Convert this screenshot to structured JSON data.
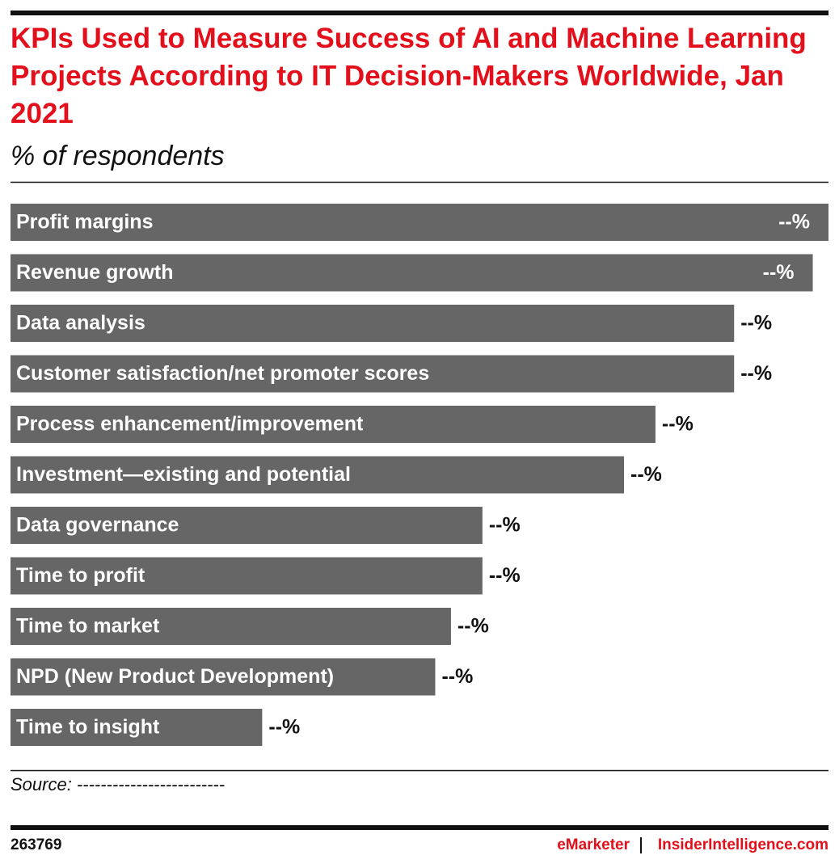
{
  "chart_data": {
    "type": "bar",
    "orientation": "horizontal",
    "title": "KPIs Used to Measure Success of AI and Machine Learning Projects According to IT Decision-Makers Worldwide, Jan 2021",
    "subtitle": "% of respondents",
    "categories": [
      "Profit margins",
      "Revenue growth",
      "Data analysis",
      "Customer satisfaction/net promoter scores",
      "Process enhancement/improvement",
      "Investment—existing and potential",
      "Data governance",
      "Time to profit",
      "Time to market",
      "NPD (New Product Development)",
      "Time to insight"
    ],
    "values": [
      52,
      51,
      46,
      46,
      41,
      39,
      30,
      30,
      28,
      27,
      16
    ],
    "value_labels": [
      "--%",
      "--%",
      "--%",
      "--%",
      "--%",
      "--%",
      "--%",
      "--%",
      "--%",
      "--%",
      "--%"
    ],
    "color": "#666666",
    "source": "Source: -------------------------",
    "chart_id": "263769",
    "brand": "eMarketer",
    "brand_site": "InsiderIntelligence.com"
  }
}
